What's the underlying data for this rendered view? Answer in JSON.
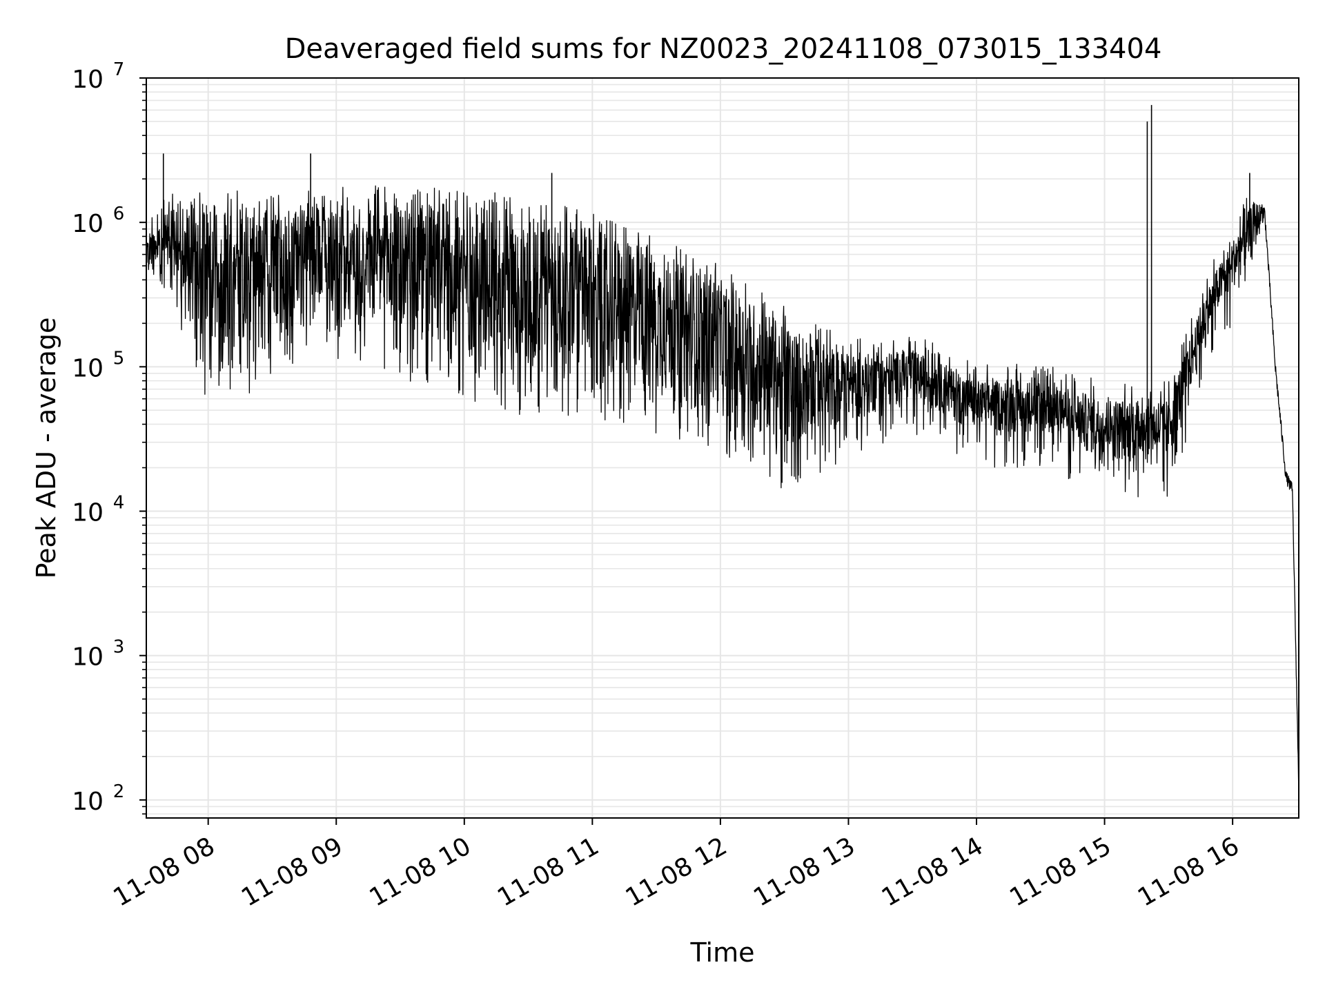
{
  "chart_data": {
    "type": "line",
    "title": "Deaveraged field sums for NZ0023_20241108_073015_133404",
    "xlabel": "Time",
    "ylabel": "Peak ADU - average",
    "y_scale": "log",
    "ylim": [
      75,
      10000000
    ],
    "xlim": [
      "2024-11-08 07:31",
      "2024-11-08 16:31"
    ],
    "grid": true,
    "line_color": "#000000",
    "grid_color": "#e6e6e6",
    "x_ticks": [
      {
        "t": "2024-11-08 08:00",
        "label": "11-08 08"
      },
      {
        "t": "2024-11-08 09:00",
        "label": "11-08 09"
      },
      {
        "t": "2024-11-08 10:00",
        "label": "11-08 10"
      },
      {
        "t": "2024-11-08 11:00",
        "label": "11-08 11"
      },
      {
        "t": "2024-11-08 12:00",
        "label": "11-08 12"
      },
      {
        "t": "2024-11-08 13:00",
        "label": "11-08 13"
      },
      {
        "t": "2024-11-08 14:00",
        "label": "11-08 14"
      },
      {
        "t": "2024-11-08 15:00",
        "label": "11-08 15"
      },
      {
        "t": "2024-11-08 16:00",
        "label": "11-08 16"
      }
    ],
    "y_ticks": [
      {
        "value": 100,
        "base": "10",
        "exp": "2"
      },
      {
        "value": 1000,
        "base": "10",
        "exp": "3"
      },
      {
        "value": 10000,
        "base": "10",
        "exp": "4"
      },
      {
        "value": 100000,
        "base": "10",
        "exp": "5"
      },
      {
        "value": 1000000,
        "base": "10",
        "exp": "6"
      },
      {
        "value": 10000000,
        "base": "10",
        "exp": "7"
      }
    ],
    "series": [
      {
        "envelope_points": [
          {
            "t": "2024-11-08 07:31",
            "low": 450000,
            "high": 700000
          },
          {
            "t": "2024-11-08 07:40",
            "low": 500000,
            "high": 1200000
          },
          {
            "t": "2024-11-08 08:00",
            "low": 100000,
            "high": 1300000
          },
          {
            "t": "2024-11-08 08:30",
            "low": 120000,
            "high": 1200000
          },
          {
            "t": "2024-11-08 08:50",
            "low": 300000,
            "high": 1400000
          },
          {
            "t": "2024-11-08 09:00",
            "low": 200000,
            "high": 1400000
          },
          {
            "t": "2024-11-08 09:30",
            "low": 150000,
            "high": 1400000
          },
          {
            "t": "2024-11-08 10:00",
            "low": 100000,
            "high": 1300000
          },
          {
            "t": "2024-11-08 10:30",
            "low": 80000,
            "high": 1200000
          },
          {
            "t": "2024-11-08 11:00",
            "low": 80000,
            "high": 900000
          },
          {
            "t": "2024-11-08 11:30",
            "low": 60000,
            "high": 600000
          },
          {
            "t": "2024-11-08 12:00",
            "low": 45000,
            "high": 400000
          },
          {
            "t": "2024-11-08 12:30",
            "low": 25000,
            "high": 200000
          },
          {
            "t": "2024-11-08 13:00",
            "low": 40000,
            "high": 120000
          },
          {
            "t": "2024-11-08 13:30",
            "low": 60000,
            "high": 130000
          },
          {
            "t": "2024-11-08 14:00",
            "low": 35000,
            "high": 80000
          },
          {
            "t": "2024-11-08 14:30",
            "low": 35000,
            "high": 80000
          },
          {
            "t": "2024-11-08 15:00",
            "low": 22000,
            "high": 60000
          },
          {
            "t": "2024-11-08 15:30",
            "low": 22000,
            "high": 60000
          },
          {
            "t": "2024-11-08 15:50",
            "low": 200000,
            "high": 400000
          },
          {
            "t": "2024-11-08 16:10",
            "low": 600000,
            "high": 1400000
          },
          {
            "t": "2024-11-08 16:15",
            "low": 1100000,
            "high": 1300000
          },
          {
            "t": "2024-11-08 16:20",
            "low": 100000,
            "high": 100000
          },
          {
            "t": "2024-11-08 16:25",
            "low": 15000,
            "high": 20000
          },
          {
            "t": "2024-11-08 16:28",
            "low": 10000,
            "high": 20000
          },
          {
            "t": "2024-11-08 16:31",
            "low": 120,
            "high": 120
          }
        ],
        "spikes": [
          {
            "t": "2024-11-08 07:39",
            "value": 3000000
          },
          {
            "t": "2024-11-08 08:48",
            "value": 3000000
          },
          {
            "t": "2024-11-08 10:41",
            "value": 2200000
          },
          {
            "t": "2024-11-08 15:20",
            "value": 5000000
          },
          {
            "t": "2024-11-08 15:22",
            "value": 6500000
          },
          {
            "t": "2024-11-08 16:08",
            "value": 2200000
          }
        ]
      }
    ]
  }
}
